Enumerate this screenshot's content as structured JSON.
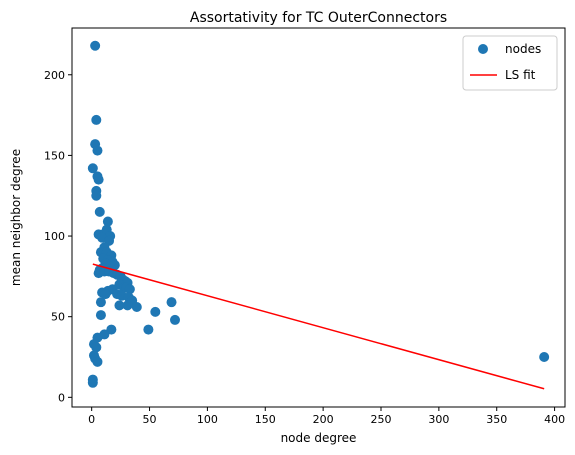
{
  "chart_data": {
    "type": "scatter",
    "title": "Assortativity for TC OuterConnectors",
    "xlabel": "node degree",
    "ylabel": "mean neighbor degree",
    "xlim": [
      -17,
      409
    ],
    "ylim": [
      -6,
      229
    ],
    "xticks": [
      0,
      50,
      100,
      150,
      200,
      250,
      300,
      350,
      400
    ],
    "yticks": [
      0,
      50,
      100,
      150,
      200
    ],
    "grid": false,
    "legend_position": "top-right",
    "legend": [
      "nodes",
      "LS fit"
    ],
    "colors": {
      "nodes": "#1f77b4",
      "fit": "#ff0000"
    },
    "series": [
      {
        "name": "nodes",
        "kind": "scatter",
        "points": [
          [
            3,
            218
          ],
          [
            4,
            172
          ],
          [
            3,
            157
          ],
          [
            5,
            153
          ],
          [
            1,
            142
          ],
          [
            5,
            137
          ],
          [
            6,
            135
          ],
          [
            4,
            128
          ],
          [
            4,
            125
          ],
          [
            7,
            115
          ],
          [
            14,
            109
          ],
          [
            6,
            101
          ],
          [
            10,
            101
          ],
          [
            13,
            104
          ],
          [
            16,
            100
          ],
          [
            9,
            99
          ],
          [
            15,
            97
          ],
          [
            11,
            93
          ],
          [
            8,
            90
          ],
          [
            13,
            90
          ],
          [
            17,
            88
          ],
          [
            10,
            86
          ],
          [
            14,
            85
          ],
          [
            18,
            84
          ],
          [
            12,
            83
          ],
          [
            20,
            82
          ],
          [
            16,
            81
          ],
          [
            9,
            80
          ],
          [
            7,
            79
          ],
          [
            6,
            77
          ],
          [
            11,
            78
          ],
          [
            15,
            78
          ],
          [
            19,
            77
          ],
          [
            22,
            76
          ],
          [
            25,
            75
          ],
          [
            27,
            73
          ],
          [
            29,
            72
          ],
          [
            31,
            71
          ],
          [
            24,
            70
          ],
          [
            28,
            68
          ],
          [
            30,
            68
          ],
          [
            33,
            67
          ],
          [
            18,
            67
          ],
          [
            14,
            66
          ],
          [
            22,
            64
          ],
          [
            26,
            63
          ],
          [
            32,
            62
          ],
          [
            35,
            60
          ],
          [
            9,
            65
          ],
          [
            12,
            64
          ],
          [
            8,
            59
          ],
          [
            31,
            57
          ],
          [
            24,
            57
          ],
          [
            39,
            56
          ],
          [
            55,
            53
          ],
          [
            69,
            59
          ],
          [
            72,
            48
          ],
          [
            8,
            51
          ],
          [
            49,
            42
          ],
          [
            17,
            42
          ],
          [
            11,
            39
          ],
          [
            5,
            37
          ],
          [
            2,
            33
          ],
          [
            4,
            31
          ],
          [
            2,
            26
          ],
          [
            3,
            24
          ],
          [
            5,
            22
          ],
          [
            1,
            11
          ],
          [
            1,
            9
          ],
          [
            391,
            25
          ]
        ]
      },
      {
        "name": "LS fit",
        "kind": "line",
        "points": [
          [
            1,
            82.6
          ],
          [
            391,
            5.3
          ]
        ]
      }
    ]
  }
}
